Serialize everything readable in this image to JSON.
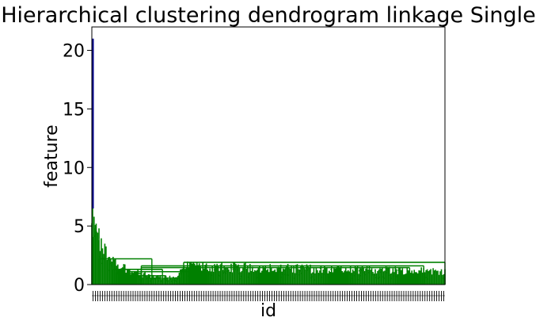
{
  "chart_data": {
    "type": "dendrogram",
    "title": "Hierarchical clustering dendrogram linkage Single",
    "xlabel": "id",
    "ylabel": "feature",
    "ylim": [
      0,
      22
    ],
    "yticks": [
      0,
      5,
      10,
      15,
      20
    ],
    "grid": false,
    "legend": "none",
    "colors": {
      "cluster": "#008000",
      "root": "#00008b",
      "axes": "#000000",
      "background": "#ffffff"
    },
    "leaf_count": 300,
    "root_link_height": 21.0,
    "main_cluster_height": 6.5,
    "reference_links": [
      {
        "x_from": 0.02,
        "x_to": 0.17,
        "height": 2.2
      },
      {
        "x_from": 0.26,
        "x_to": 1.0,
        "height": 1.9
      },
      {
        "x_from": 0.14,
        "x_to": 0.94,
        "height": 1.6
      },
      {
        "x_from": 0.14,
        "x_to": 0.9,
        "height": 1.45
      },
      {
        "x_from": 0.06,
        "x_to": 0.2,
        "height": 1.3
      },
      {
        "x_from": 0.1,
        "x_to": 0.28,
        "height": 1.1
      },
      {
        "x_from": 0.07,
        "x_to": 0.14,
        "height": 0.95
      },
      {
        "x_from": 0.1,
        "x_to": 0.21,
        "height": 0.75
      },
      {
        "x_from": 0.16,
        "x_to": 0.25,
        "height": 0.55
      }
    ]
  }
}
